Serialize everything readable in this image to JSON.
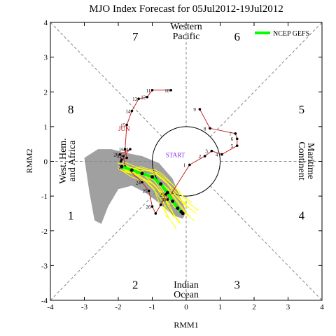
{
  "chart_data": {
    "type": "scatter",
    "title": "MJO Index Forecast for 05Jul2012-19Jul2012",
    "xlabel": "RMM1",
    "ylabel": "RMM2",
    "xlim": [
      -4,
      4
    ],
    "ylim": [
      -4,
      4
    ],
    "xticks": [
      "-4",
      "-3",
      "-2",
      "-1",
      "0",
      "1",
      "2",
      "3",
      "4"
    ],
    "yticks": [
      "-4",
      "-3",
      "-2",
      "-1",
      "0",
      "1",
      "2",
      "3",
      "4"
    ],
    "phase_numbers": [
      "1",
      "2",
      "3",
      "4",
      "5",
      "6",
      "7",
      "8"
    ],
    "region_labels": {
      "top": [
        "Western",
        "Pacific"
      ],
      "bottom": [
        "Indian",
        "Ocean"
      ],
      "left": [
        "West. Hem.",
        "and Africa"
      ],
      "right": [
        "Maritime",
        "Continent"
      ]
    },
    "legend": {
      "label": "NCEP GEFS",
      "color": "#00ff00",
      "position": "top-right"
    },
    "annotations": {
      "month": "JUN",
      "start": "START"
    },
    "colors": {
      "observed": "#cc2222",
      "ensemble": "#ffff00",
      "mean": "#00ff00",
      "spread": "#a0a0a0",
      "month_label": "#cc0000",
      "start_label": "#8a2be2"
    },
    "observed": {
      "days": [
        "10",
        "11",
        "12",
        "13",
        "14",
        "15",
        "16",
        "17",
        "18",
        "19",
        "20",
        "21",
        "22",
        "23",
        "24",
        "25",
        "26",
        "27",
        "28",
        "29",
        "30",
        "1",
        "2",
        "3",
        "4",
        "5",
        "6",
        "7",
        "8",
        "9"
      ],
      "x": [
        -0.45,
        -1.0,
        -1.15,
        -1.4,
        -1.6,
        -1.75,
        -1.8,
        -1.75,
        -1.9,
        -1.92,
        -1.95,
        -1.65,
        -1.85,
        -1.8,
        -1.3,
        -1.1,
        -1.0,
        -0.9,
        -0.75,
        -0.6,
        -0.55,
        0.1,
        0.55,
        0.75,
        1.05,
        1.5,
        1.5,
        1.45,
        0.7,
        0.4
      ],
      "y": [
        2.05,
        2.05,
        1.85,
        1.8,
        1.45,
        1.05,
        0.35,
        0.1,
        0.05,
        0.0,
        0.2,
        0.35,
        0.15,
        -0.15,
        -0.6,
        -0.85,
        -1.3,
        -1.5,
        -1.25,
        -0.95,
        -1.1,
        -0.1,
        0.15,
        0.3,
        0.2,
        0.45,
        0.65,
        0.8,
        0.95,
        1.5
      ]
    },
    "observed_labeled_days": [
      "10",
      "11",
      "12",
      "13",
      "14",
      "15",
      "16",
      "20",
      "21",
      "22",
      "23",
      "24",
      "25",
      "26",
      "29",
      "30",
      "1",
      "2",
      "3",
      "4",
      "5",
      "6",
      "7",
      "8",
      "9"
    ],
    "forecast_mean": {
      "x": [
        -1.9,
        -1.6,
        -1.3,
        -1.0,
        -0.75,
        -0.55,
        -0.4,
        -0.25,
        -0.15,
        -0.1
      ],
      "y": [
        -0.15,
        -0.25,
        -0.35,
        -0.45,
        -0.65,
        -0.9,
        -1.15,
        -1.35,
        -1.45,
        -1.5
      ]
    },
    "spread_polygon": {
      "x": [
        -3.0,
        -2.6,
        -2.2,
        -1.8,
        -1.3,
        -0.8,
        -0.4,
        0.0,
        -0.1,
        -0.4,
        -0.8,
        -1.2,
        -1.6,
        -2.0,
        -2.3,
        -2.5,
        -2.7,
        -2.85,
        -3.0
      ],
      "y": [
        0.1,
        0.35,
        0.35,
        0.25,
        0.15,
        -0.05,
        -0.5,
        -1.45,
        -1.65,
        -1.55,
        -1.2,
        -0.9,
        -0.7,
        -0.8,
        -1.3,
        -1.8,
        -1.7,
        -0.9,
        0.1
      ]
    }
  }
}
